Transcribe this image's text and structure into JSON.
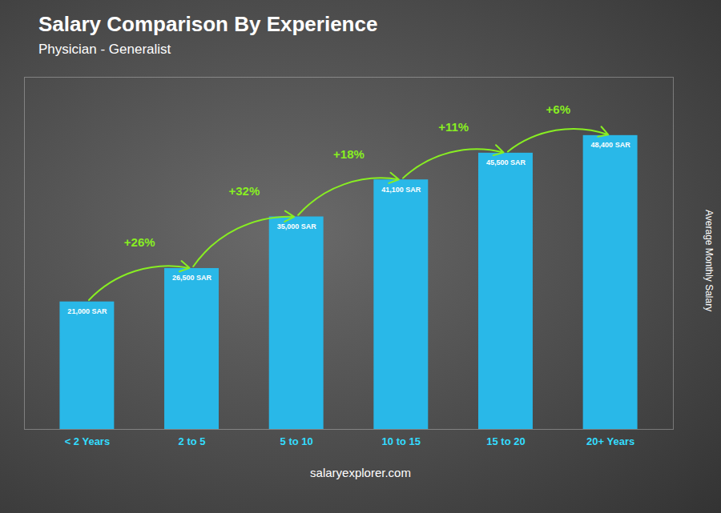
{
  "chart_data": {
    "type": "bar",
    "title": "Salary Comparison By Experience",
    "subtitle": "Physician - Generalist",
    "categories": [
      "< 2 Years",
      "2 to 5",
      "5 to 10",
      "10 to 15",
      "15 to 20",
      "20+ Years"
    ],
    "values": [
      21000,
      26500,
      35000,
      41100,
      45500,
      48400
    ],
    "value_labels": [
      "21,000 SAR",
      "26,500 SAR",
      "35,000 SAR",
      "41,100 SAR",
      "45,500 SAR",
      "48,400 SAR"
    ],
    "data_labels": true,
    "annotations": [
      "+26%",
      "+32%",
      "+18%",
      "+11%",
      "+6%"
    ],
    "ylabel": "Average Monthly Salary",
    "ylim": [
      0,
      58000
    ],
    "color": "#29B8E8",
    "grid": false,
    "tick_labels": "x",
    "caption": "salaryexplorer.com"
  }
}
